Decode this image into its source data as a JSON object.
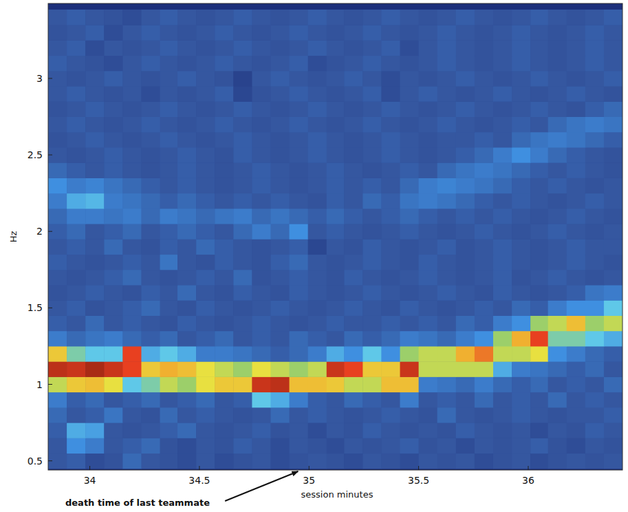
{
  "chart_data": {
    "type": "heatmap",
    "x_label": "session minutes",
    "y_label": "Hz",
    "xlim": [
      33.81,
      36.43
    ],
    "ylim": [
      0.44,
      3.49
    ],
    "xticks": [
      34,
      34.5,
      35,
      35.5,
      36
    ],
    "yticks": [
      0.5,
      1,
      1.5,
      2,
      2.5,
      3
    ],
    "zlim": [
      0,
      1
    ],
    "x": [
      33.85,
      33.94,
      34.02,
      34.11,
      34.19,
      34.28,
      34.36,
      34.44,
      34.53,
      34.61,
      34.7,
      34.78,
      34.87,
      34.95,
      35.04,
      35.12,
      35.2,
      35.29,
      35.37,
      35.46,
      35.54,
      35.63,
      35.71,
      35.8,
      35.88,
      35.97,
      36.05,
      36.13,
      36.22,
      36.3,
      36.39
    ],
    "y": [
      0.5,
      0.6,
      0.7,
      0.8,
      0.9,
      1.0,
      1.1,
      1.2,
      1.3,
      1.4,
      1.5,
      1.6,
      1.7,
      1.8,
      1.9,
      2.0,
      2.1,
      2.2,
      2.3,
      2.4,
      2.5,
      2.6,
      2.7,
      2.8,
      2.9,
      3.0,
      3.1,
      3.2,
      3.3,
      3.4
    ],
    "z": [
      [
        0.2,
        0.22,
        0.15,
        0.18,
        0.25,
        0.2,
        0.18,
        0.15,
        0.2,
        0.15,
        0.18,
        0.2,
        0.15,
        0.18,
        0.2,
        0.18,
        0.15,
        0.2,
        0.18,
        0.15,
        0.2,
        0.18,
        0.2,
        0.15,
        0.18,
        0.2,
        0.15,
        0.18,
        0.2,
        0.18,
        0.2
      ],
      [
        0.2,
        0.35,
        0.3,
        0.2,
        0.22,
        0.25,
        0.18,
        0.15,
        0.2,
        0.18,
        0.22,
        0.2,
        0.15,
        0.2,
        0.18,
        0.15,
        0.2,
        0.18,
        0.2,
        0.22,
        0.18,
        0.2,
        0.15,
        0.2,
        0.18,
        0.2,
        0.22,
        0.18,
        0.15,
        0.2,
        0.18
      ],
      [
        0.22,
        0.4,
        0.38,
        0.2,
        0.18,
        0.2,
        0.22,
        0.25,
        0.2,
        0.18,
        0.2,
        0.22,
        0.18,
        0.2,
        0.15,
        0.2,
        0.18,
        0.22,
        0.2,
        0.18,
        0.2,
        0.18,
        0.22,
        0.2,
        0.18,
        0.2,
        0.15,
        0.2,
        0.18,
        0.22,
        0.2
      ],
      [
        0.25,
        0.2,
        0.22,
        0.28,
        0.2,
        0.18,
        0.25,
        0.2,
        0.22,
        0.2,
        0.18,
        0.2,
        0.25,
        0.2,
        0.22,
        0.2,
        0.18,
        0.2,
        0.22,
        0.2,
        0.18,
        0.25,
        0.2,
        0.18,
        0.2,
        0.22,
        0.2,
        0.18,
        0.2,
        0.2,
        0.22
      ],
      [
        0.3,
        0.22,
        0.25,
        0.2,
        0.22,
        0.25,
        0.2,
        0.22,
        0.25,
        0.2,
        0.22,
        0.45,
        0.4,
        0.3,
        0.22,
        0.2,
        0.25,
        0.22,
        0.2,
        0.3,
        0.2,
        0.22,
        0.2,
        0.25,
        0.2,
        0.22,
        0.2,
        0.25,
        0.2,
        0.22,
        0.2
      ],
      [
        0.6,
        0.7,
        0.72,
        0.65,
        0.45,
        0.5,
        0.6,
        0.55,
        0.65,
        0.7,
        0.7,
        0.9,
        0.92,
        0.72,
        0.72,
        0.7,
        0.6,
        0.6,
        0.72,
        0.72,
        0.3,
        0.28,
        0.25,
        0.3,
        0.25,
        0.22,
        0.25,
        0.2,
        0.22,
        0.2,
        0.25
      ],
      [
        0.92,
        0.9,
        0.95,
        0.9,
        0.85,
        0.7,
        0.75,
        0.72,
        0.65,
        0.6,
        0.55,
        0.65,
        0.6,
        0.55,
        0.6,
        0.9,
        0.85,
        0.7,
        0.7,
        0.9,
        0.6,
        0.6,
        0.6,
        0.6,
        0.4,
        0.3,
        0.28,
        0.25,
        0.22,
        0.25,
        0.2
      ],
      [
        0.7,
        0.5,
        0.45,
        0.45,
        0.85,
        0.4,
        0.45,
        0.4,
        0.3,
        0.3,
        0.28,
        0.25,
        0.22,
        0.25,
        0.3,
        0.4,
        0.35,
        0.45,
        0.35,
        0.55,
        0.6,
        0.6,
        0.75,
        0.8,
        0.6,
        0.6,
        0.65,
        0.35,
        0.3,
        0.25,
        0.22
      ],
      [
        0.3,
        0.25,
        0.28,
        0.3,
        0.25,
        0.22,
        0.25,
        0.2,
        0.22,
        0.25,
        0.2,
        0.22,
        0.2,
        0.25,
        0.22,
        0.2,
        0.25,
        0.22,
        0.25,
        0.3,
        0.28,
        0.25,
        0.3,
        0.35,
        0.55,
        0.75,
        0.85,
        0.5,
        0.5,
        0.45,
        0.4
      ],
      [
        0.22,
        0.2,
        0.25,
        0.2,
        0.22,
        0.2,
        0.18,
        0.22,
        0.2,
        0.18,
        0.2,
        0.22,
        0.2,
        0.18,
        0.2,
        0.22,
        0.2,
        0.2,
        0.22,
        0.2,
        0.22,
        0.2,
        0.25,
        0.22,
        0.3,
        0.35,
        0.55,
        0.6,
        0.72,
        0.55,
        0.6
      ],
      [
        0.2,
        0.22,
        0.18,
        0.2,
        0.22,
        0.25,
        0.2,
        0.18,
        0.22,
        0.2,
        0.18,
        0.2,
        0.22,
        0.2,
        0.18,
        0.2,
        0.22,
        0.2,
        0.18,
        0.22,
        0.2,
        0.18,
        0.2,
        0.22,
        0.2,
        0.25,
        0.22,
        0.3,
        0.35,
        0.35,
        0.45
      ],
      [
        0.18,
        0.2,
        0.22,
        0.2,
        0.18,
        0.22,
        0.2,
        0.25,
        0.2,
        0.18,
        0.22,
        0.2,
        0.18,
        0.22,
        0.2,
        0.18,
        0.2,
        0.22,
        0.2,
        0.18,
        0.2,
        0.22,
        0.2,
        0.18,
        0.22,
        0.2,
        0.18,
        0.2,
        0.22,
        0.28,
        0.3
      ],
      [
        0.2,
        0.18,
        0.2,
        0.22,
        0.25,
        0.2,
        0.18,
        0.2,
        0.22,
        0.2,
        0.25,
        0.18,
        0.2,
        0.22,
        0.2,
        0.18,
        0.22,
        0.2,
        0.18,
        0.2,
        0.22,
        0.2,
        0.18,
        0.2,
        0.22,
        0.18,
        0.2,
        0.22,
        0.2,
        0.18,
        0.2
      ],
      [
        0.22,
        0.2,
        0.18,
        0.2,
        0.22,
        0.2,
        0.28,
        0.2,
        0.18,
        0.22,
        0.2,
        0.18,
        0.22,
        0.25,
        0.2,
        0.18,
        0.2,
        0.22,
        0.2,
        0.18,
        0.22,
        0.2,
        0.18,
        0.2,
        0.22,
        0.2,
        0.18,
        0.2,
        0.22,
        0.2,
        0.18
      ],
      [
        0.2,
        0.22,
        0.2,
        0.25,
        0.2,
        0.18,
        0.22,
        0.2,
        0.25,
        0.22,
        0.2,
        0.18,
        0.2,
        0.22,
        0.12,
        0.2,
        0.18,
        0.22,
        0.2,
        0.18,
        0.2,
        0.22,
        0.18,
        0.2,
        0.22,
        0.2,
        0.18,
        0.2,
        0.22,
        0.2,
        0.2
      ],
      [
        0.22,
        0.25,
        0.2,
        0.22,
        0.25,
        0.2,
        0.22,
        0.25,
        0.22,
        0.2,
        0.25,
        0.3,
        0.25,
        0.35,
        0.2,
        0.22,
        0.2,
        0.18,
        0.2,
        0.22,
        0.2,
        0.18,
        0.2,
        0.22,
        0.2,
        0.18,
        0.2,
        0.22,
        0.2,
        0.18,
        0.2
      ],
      [
        0.25,
        0.3,
        0.3,
        0.28,
        0.3,
        0.25,
        0.3,
        0.28,
        0.25,
        0.28,
        0.3,
        0.25,
        0.28,
        0.25,
        0.22,
        0.25,
        0.22,
        0.2,
        0.22,
        0.25,
        0.22,
        0.2,
        0.22,
        0.2,
        0.22,
        0.2,
        0.18,
        0.2,
        0.22,
        0.2,
        0.18
      ],
      [
        0.3,
        0.4,
        0.42,
        0.3,
        0.28,
        0.25,
        0.22,
        0.25,
        0.22,
        0.2,
        0.22,
        0.2,
        0.22,
        0.2,
        0.18,
        0.22,
        0.2,
        0.25,
        0.22,
        0.28,
        0.3,
        0.28,
        0.25,
        0.22,
        0.2,
        0.22,
        0.2,
        0.18,
        0.2,
        0.22,
        0.2
      ],
      [
        0.35,
        0.3,
        0.32,
        0.28,
        0.25,
        0.22,
        0.2,
        0.22,
        0.2,
        0.18,
        0.2,
        0.22,
        0.2,
        0.18,
        0.2,
        0.22,
        0.2,
        0.22,
        0.2,
        0.25,
        0.3,
        0.32,
        0.3,
        0.28,
        0.25,
        0.22,
        0.2,
        0.22,
        0.2,
        0.18,
        0.2
      ],
      [
        0.25,
        0.22,
        0.2,
        0.22,
        0.2,
        0.18,
        0.2,
        0.22,
        0.2,
        0.18,
        0.2,
        0.22,
        0.2,
        0.18,
        0.2,
        0.22,
        0.2,
        0.18,
        0.2,
        0.22,
        0.2,
        0.25,
        0.28,
        0.3,
        0.28,
        0.25,
        0.22,
        0.2,
        0.22,
        0.2,
        0.18
      ],
      [
        0.2,
        0.18,
        0.2,
        0.22,
        0.2,
        0.18,
        0.2,
        0.22,
        0.2,
        0.18,
        0.22,
        0.2,
        0.18,
        0.2,
        0.22,
        0.2,
        0.18,
        0.2,
        0.22,
        0.2,
        0.18,
        0.2,
        0.22,
        0.25,
        0.3,
        0.35,
        0.3,
        0.25,
        0.22,
        0.2,
        0.18
      ],
      [
        0.18,
        0.2,
        0.22,
        0.2,
        0.18,
        0.2,
        0.22,
        0.2,
        0.18,
        0.2,
        0.22,
        0.2,
        0.18,
        0.2,
        0.22,
        0.2,
        0.18,
        0.2,
        0.22,
        0.2,
        0.18,
        0.2,
        0.2,
        0.22,
        0.2,
        0.25,
        0.28,
        0.3,
        0.28,
        0.25,
        0.22
      ],
      [
        0.2,
        0.22,
        0.2,
        0.18,
        0.2,
        0.22,
        0.2,
        0.18,
        0.2,
        0.22,
        0.2,
        0.18,
        0.2,
        0.22,
        0.2,
        0.18,
        0.2,
        0.22,
        0.2,
        0.18,
        0.2,
        0.22,
        0.2,
        0.18,
        0.2,
        0.22,
        0.2,
        0.25,
        0.28,
        0.3,
        0.28
      ],
      [
        0.18,
        0.2,
        0.22,
        0.2,
        0.18,
        0.2,
        0.22,
        0.2,
        0.18,
        0.2,
        0.22,
        0.2,
        0.18,
        0.2,
        0.22,
        0.2,
        0.18,
        0.2,
        0.22,
        0.2,
        0.18,
        0.2,
        0.22,
        0.2,
        0.18,
        0.2,
        0.22,
        0.2,
        0.18,
        0.22,
        0.25
      ],
      [
        0.2,
        0.22,
        0.2,
        0.18,
        0.2,
        0.15,
        0.2,
        0.18,
        0.2,
        0.22,
        0.12,
        0.18,
        0.2,
        0.22,
        0.2,
        0.18,
        0.2,
        0.22,
        0.15,
        0.2,
        0.22,
        0.2,
        0.18,
        0.2,
        0.22,
        0.2,
        0.18,
        0.2,
        0.22,
        0.2,
        0.18
      ],
      [
        0.2,
        0.18,
        0.2,
        0.22,
        0.2,
        0.18,
        0.2,
        0.22,
        0.2,
        0.18,
        0.1,
        0.2,
        0.22,
        0.2,
        0.18,
        0.2,
        0.22,
        0.2,
        0.15,
        0.2,
        0.18,
        0.2,
        0.22,
        0.2,
        0.18,
        0.2,
        0.22,
        0.2,
        0.18,
        0.2,
        0.22
      ],
      [
        0.22,
        0.2,
        0.18,
        0.15,
        0.2,
        0.22,
        0.2,
        0.18,
        0.2,
        0.22,
        0.2,
        0.18,
        0.2,
        0.22,
        0.15,
        0.18,
        0.2,
        0.22,
        0.2,
        0.18,
        0.2,
        0.22,
        0.2,
        0.18,
        0.2,
        0.22,
        0.2,
        0.18,
        0.2,
        0.22,
        0.2
      ],
      [
        0.2,
        0.22,
        0.15,
        0.2,
        0.18,
        0.2,
        0.22,
        0.2,
        0.18,
        0.2,
        0.22,
        0.2,
        0.18,
        0.2,
        0.22,
        0.2,
        0.18,
        0.2,
        0.22,
        0.15,
        0.2,
        0.22,
        0.2,
        0.18,
        0.2,
        0.22,
        0.2,
        0.18,
        0.2,
        0.22,
        0.2
      ],
      [
        0.18,
        0.2,
        0.22,
        0.15,
        0.2,
        0.22,
        0.2,
        0.18,
        0.2,
        0.22,
        0.2,
        0.18,
        0.2,
        0.22,
        0.2,
        0.18,
        0.2,
        0.22,
        0.2,
        0.18,
        0.2,
        0.22,
        0.2,
        0.18,
        0.2,
        0.22,
        0.2,
        0.18,
        0.2,
        0.22,
        0.2
      ],
      [
        0.2,
        0.22,
        0.2,
        0.18,
        0.15,
        0.2,
        0.22,
        0.2,
        0.18,
        0.2,
        0.22,
        0.2,
        0.18,
        0.2,
        0.22,
        0.2,
        0.18,
        0.2,
        0.22,
        0.2,
        0.18,
        0.2,
        0.22,
        0.2,
        0.18,
        0.2,
        0.22,
        0.2,
        0.18,
        0.2,
        0.22
      ]
    ],
    "annotations": [
      {
        "text": "death time of last teammate",
        "x": 34.95
      }
    ]
  }
}
